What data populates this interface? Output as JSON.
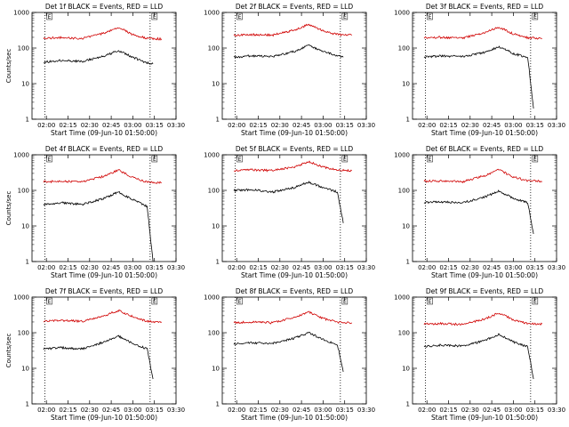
{
  "chart_data": [
    {
      "type": "line",
      "title": "Det 1f BLACK = Events, RED = LLD",
      "ylabel": "Counts/sec",
      "xlabel": "Start Time (09-Jun-10 01:50:00)",
      "x_ticks": [
        "02:00",
        "02:15",
        "02:30",
        "02:45",
        "03:00",
        "03:15",
        "03:30"
      ],
      "y_ticks": [
        "1",
        "10",
        "100",
        "1000"
      ],
      "xlim": [
        "01:50",
        "03:30"
      ],
      "ylim": [
        1,
        1000
      ],
      "y_scale": "log",
      "vlines": [
        "01:59",
        "03:12"
      ],
      "marker_label": "E",
      "series": [
        {
          "color": "#d00000",
          "x": [
            "01:58",
            "02:10",
            "02:25",
            "02:40",
            "02:50",
            "03:00",
            "03:10",
            "03:20"
          ],
          "values": [
            190,
            195,
            185,
            260,
            380,
            240,
            185,
            180
          ]
        },
        {
          "color": "#000000",
          "x": [
            "01:58",
            "02:10",
            "02:25",
            "02:40",
            "02:50",
            "03:00",
            "03:10",
            "03:14"
          ],
          "values": [
            40,
            45,
            42,
            60,
            85,
            55,
            38,
            36
          ]
        }
      ]
    },
    {
      "type": "line",
      "title": "Det 2f BLACK = Events, RED = LLD",
      "ylabel": "",
      "xlabel": "Start Time (09-Jun-10 01:50:00)",
      "x_ticks": [
        "02:00",
        "02:15",
        "02:30",
        "02:45",
        "03:00",
        "03:15",
        "03:30"
      ],
      "y_ticks": [
        "1",
        "10",
        "100",
        "1000"
      ],
      "xlim": [
        "01:50",
        "03:30"
      ],
      "ylim": [
        1,
        1000
      ],
      "y_scale": "log",
      "vlines": [
        "01:59",
        "03:12"
      ],
      "marker_label": "E",
      "series": [
        {
          "color": "#d00000",
          "x": [
            "01:58",
            "02:10",
            "02:25",
            "02:40",
            "02:50",
            "03:00",
            "03:10",
            "03:20"
          ],
          "values": [
            230,
            240,
            230,
            320,
            460,
            300,
            240,
            230
          ]
        },
        {
          "color": "#000000",
          "x": [
            "01:58",
            "02:10",
            "02:25",
            "02:40",
            "02:50",
            "03:00",
            "03:10",
            "03:14"
          ],
          "values": [
            55,
            60,
            58,
            80,
            120,
            80,
            60,
            55
          ]
        }
      ]
    },
    {
      "type": "line",
      "title": "Det 3f BLACK = Events, RED = LLD",
      "ylabel": "",
      "xlabel": "Start Time (09-Jun-10 01:50:00)",
      "x_ticks": [
        "02:00",
        "02:15",
        "02:30",
        "02:45",
        "03:00",
        "03:15",
        "03:30"
      ],
      "y_ticks": [
        "1",
        "10",
        "100",
        "1000"
      ],
      "xlim": [
        "01:50",
        "03:30"
      ],
      "ylim": [
        1,
        1000
      ],
      "y_scale": "log",
      "vlines": [
        "01:59",
        "03:12"
      ],
      "marker_label": "E",
      "series": [
        {
          "color": "#d00000",
          "x": [
            "01:58",
            "02:10",
            "02:25",
            "02:40",
            "02:50",
            "03:00",
            "03:10",
            "03:20"
          ],
          "values": [
            195,
            200,
            190,
            270,
            390,
            250,
            195,
            185
          ]
        },
        {
          "color": "#000000",
          "x": [
            "01:58",
            "02:10",
            "02:25",
            "02:40",
            "02:50",
            "03:00",
            "03:10",
            "03:14"
          ],
          "values": [
            55,
            60,
            58,
            75,
            110,
            70,
            55,
            2
          ]
        }
      ]
    },
    {
      "type": "line",
      "title": "Det 4f BLACK = Events, RED = LLD",
      "ylabel": "Counts/sec",
      "xlabel": "Start Time (09-Jun-10 01:50:00)",
      "x_ticks": [
        "02:00",
        "02:15",
        "02:30",
        "02:45",
        "03:00",
        "03:15",
        "03:30"
      ],
      "y_ticks": [
        "1",
        "10",
        "100",
        "1000"
      ],
      "xlim": [
        "01:50",
        "03:30"
      ],
      "ylim": [
        1,
        1000
      ],
      "y_scale": "log",
      "vlines": [
        "01:59",
        "03:12"
      ],
      "marker_label": "E",
      "series": [
        {
          "color": "#d00000",
          "x": [
            "01:58",
            "02:10",
            "02:25",
            "02:40",
            "02:50",
            "03:00",
            "03:10",
            "03:20"
          ],
          "values": [
            175,
            180,
            170,
            250,
            370,
            230,
            170,
            165
          ]
        },
        {
          "color": "#000000",
          "x": [
            "01:58",
            "02:10",
            "02:25",
            "02:40",
            "02:50",
            "03:00",
            "03:10",
            "03:14"
          ],
          "values": [
            40,
            45,
            40,
            60,
            90,
            55,
            35,
            1
          ]
        }
      ]
    },
    {
      "type": "line",
      "title": "Det 5f BLACK = Events, RED = LLD",
      "ylabel": "",
      "xlabel": "Start Time (09-Jun-10 01:50:00)",
      "x_ticks": [
        "02:00",
        "02:15",
        "02:30",
        "02:45",
        "03:00",
        "03:15",
        "03:30"
      ],
      "y_ticks": [
        "1",
        "10",
        "100",
        "1000"
      ],
      "xlim": [
        "01:50",
        "03:30"
      ],
      "ylim": [
        1,
        1000
      ],
      "y_scale": "log",
      "vlines": [
        "01:59",
        "03:12"
      ],
      "marker_label": "E",
      "series": [
        {
          "color": "#d00000",
          "x": [
            "01:58",
            "02:10",
            "02:25",
            "02:40",
            "02:50",
            "03:00",
            "03:10",
            "03:20"
          ],
          "values": [
            360,
            380,
            360,
            460,
            640,
            450,
            370,
            360
          ]
        },
        {
          "color": "#000000",
          "x": [
            "01:58",
            "02:10",
            "02:25",
            "02:40",
            "02:50",
            "03:00",
            "03:10",
            "03:14"
          ],
          "values": [
            100,
            105,
            90,
            120,
            170,
            120,
            90,
            12
          ]
        }
      ]
    },
    {
      "type": "line",
      "title": "Det 6f BLACK = Events, RED = LLD",
      "ylabel": "",
      "xlabel": "Start Time (09-Jun-10 01:50:00)",
      "x_ticks": [
        "02:00",
        "02:15",
        "02:30",
        "02:45",
        "03:00",
        "03:15",
        "03:30"
      ],
      "y_ticks": [
        "1",
        "10",
        "100",
        "1000"
      ],
      "xlim": [
        "01:50",
        "03:30"
      ],
      "ylim": [
        1,
        1000
      ],
      "y_scale": "log",
      "vlines": [
        "01:59",
        "03:12"
      ],
      "marker_label": "E",
      "series": [
        {
          "color": "#d00000",
          "x": [
            "01:58",
            "02:10",
            "02:25",
            "02:40",
            "02:50",
            "03:00",
            "03:10",
            "03:20"
          ],
          "values": [
            180,
            185,
            175,
            260,
            380,
            240,
            185,
            180
          ]
        },
        {
          "color": "#000000",
          "x": [
            "01:58",
            "02:10",
            "02:25",
            "02:40",
            "02:50",
            "03:00",
            "03:10",
            "03:14"
          ],
          "values": [
            45,
            48,
            45,
            65,
            95,
            60,
            45,
            6
          ]
        }
      ]
    },
    {
      "type": "line",
      "title": "Det 7f BLACK = Events, RED = LLD",
      "ylabel": "Counts/sec",
      "xlabel": "Start Time (09-Jun-10 01:50:00)",
      "x_ticks": [
        "02:00",
        "02:15",
        "02:30",
        "02:45",
        "03:00",
        "03:15",
        "03:30"
      ],
      "y_ticks": [
        "1",
        "10",
        "100",
        "1000"
      ],
      "xlim": [
        "01:50",
        "03:30"
      ],
      "ylim": [
        1,
        1000
      ],
      "y_scale": "log",
      "vlines": [
        "01:59",
        "03:12"
      ],
      "marker_label": "E",
      "series": [
        {
          "color": "#d00000",
          "x": [
            "01:58",
            "02:10",
            "02:25",
            "02:40",
            "02:50",
            "03:00",
            "03:10",
            "03:20"
          ],
          "values": [
            210,
            220,
            210,
            300,
            420,
            280,
            210,
            200
          ]
        },
        {
          "color": "#000000",
          "x": [
            "01:58",
            "02:10",
            "02:25",
            "02:40",
            "02:50",
            "03:00",
            "03:10",
            "03:14"
          ],
          "values": [
            35,
            38,
            35,
            55,
            80,
            50,
            35,
            5
          ]
        }
      ]
    },
    {
      "type": "line",
      "title": "Det 8f BLACK = Events, RED = LLD",
      "ylabel": "",
      "xlabel": "Start Time (09-Jun-10 01:50:00)",
      "x_ticks": [
        "02:00",
        "02:15",
        "02:30",
        "02:45",
        "03:00",
        "03:15",
        "03:30"
      ],
      "y_ticks": [
        "1",
        "10",
        "100",
        "1000"
      ],
      "xlim": [
        "01:50",
        "03:30"
      ],
      "ylim": [
        1,
        1000
      ],
      "y_scale": "log",
      "vlines": [
        "01:59",
        "03:12"
      ],
      "marker_label": "E",
      "series": [
        {
          "color": "#d00000",
          "x": [
            "01:58",
            "02:10",
            "02:25",
            "02:40",
            "02:50",
            "03:00",
            "03:10",
            "03:20"
          ],
          "values": [
            190,
            200,
            190,
            270,
            380,
            250,
            195,
            190
          ]
        },
        {
          "color": "#000000",
          "x": [
            "01:58",
            "02:10",
            "02:25",
            "02:40",
            "02:50",
            "03:00",
            "03:10",
            "03:14"
          ],
          "values": [
            48,
            52,
            50,
            70,
            100,
            65,
            45,
            8
          ]
        }
      ]
    },
    {
      "type": "line",
      "title": "Det 9f BLACK = Events, RED = LLD",
      "ylabel": "",
      "xlabel": "Start Time (09-Jun-10 01:50:00)",
      "x_ticks": [
        "02:00",
        "02:15",
        "02:30",
        "02:45",
        "03:00",
        "03:15",
        "03:30"
      ],
      "y_ticks": [
        "1",
        "10",
        "100",
        "1000"
      ],
      "xlim": [
        "01:50",
        "03:30"
      ],
      "ylim": [
        1,
        1000
      ],
      "y_scale": "log",
      "vlines": [
        "01:59",
        "03:12"
      ],
      "marker_label": "E",
      "series": [
        {
          "color": "#d00000",
          "x": [
            "01:58",
            "02:10",
            "02:25",
            "02:40",
            "02:50",
            "03:00",
            "03:10",
            "03:20"
          ],
          "values": [
            175,
            180,
            170,
            240,
            360,
            230,
            180,
            175
          ]
        },
        {
          "color": "#000000",
          "x": [
            "01:58",
            "02:10",
            "02:25",
            "02:40",
            "02:50",
            "03:00",
            "03:10",
            "03:14"
          ],
          "values": [
            40,
            45,
            42,
            60,
            90,
            55,
            40,
            5
          ]
        }
      ]
    }
  ]
}
